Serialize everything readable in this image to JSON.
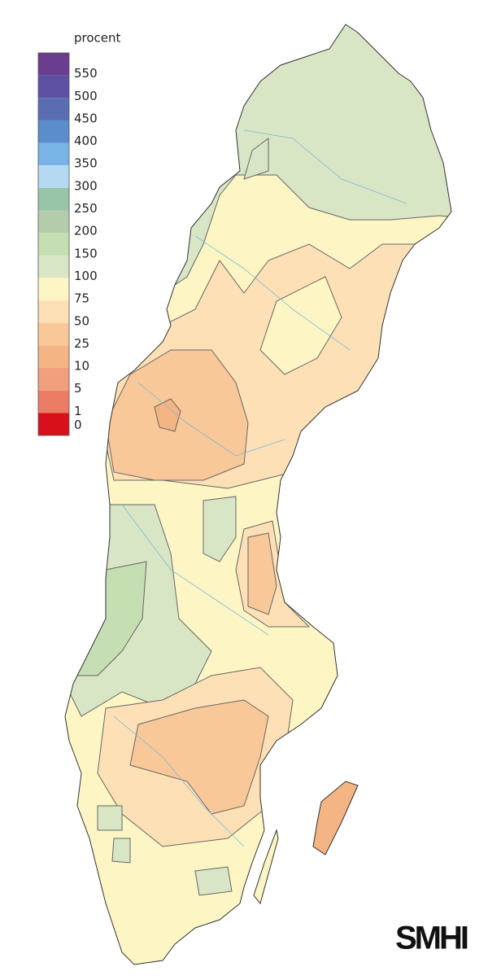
{
  "legend": {
    "title": "procent",
    "items": [
      {
        "label": "550",
        "color": "#6a3d8f"
      },
      {
        "label": "500",
        "color": "#5e50a2"
      },
      {
        "label": "450",
        "color": "#5a6db2"
      },
      {
        "label": "400",
        "color": "#5b8dcc"
      },
      {
        "label": "350",
        "color": "#79b4e4"
      },
      {
        "label": "300",
        "color": "#b5d9f1"
      },
      {
        "label": "250",
        "color": "#98c4a8"
      },
      {
        "label": "200",
        "color": "#b4ccac"
      },
      {
        "label": "150",
        "color": "#c5deb2"
      },
      {
        "label": "100",
        "color": "#d9e6c6"
      },
      {
        "label": "75",
        "color": "#fdf6c4"
      },
      {
        "label": "50",
        "color": "#fde0b6"
      },
      {
        "label": "25",
        "color": "#f8c898"
      },
      {
        "label": "10",
        "color": "#f4b484"
      },
      {
        "label": "5",
        "color": "#f0a07c"
      },
      {
        "label": "1",
        "color": "#ec7c64"
      },
      {
        "label": "0",
        "color": "#d8101c"
      }
    ]
  },
  "logo": "SMHI"
}
